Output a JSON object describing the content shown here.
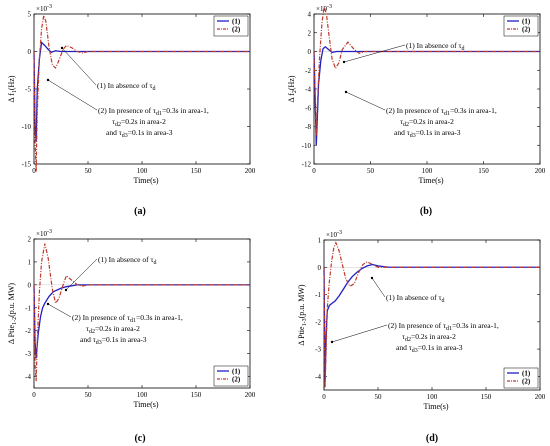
{
  "common": {
    "xlabel": "Time(s)",
    "xticks": [
      "0",
      "50",
      "100",
      "150",
      "200"
    ],
    "legend": [
      "(1)",
      "(2)"
    ],
    "exponent": "×10",
    "exponent_power": "-3",
    "series_colors": [
      "#2020c0",
      "#c0392b"
    ],
    "ann_absence": "(1) In absence of τ",
    "ann_absence_sub": "d",
    "ann_presence_1": "(2) In presence of τ",
    "ann_presence_1_sub": "d1",
    "ann_presence_1_rest": "=0.3s in area-1,",
    "ann_presence_2": "τ",
    "ann_presence_2_sub": "d2",
    "ann_presence_2_rest": "=0.2s in area-2",
    "ann_presence_3": "and τ",
    "ann_presence_3_sub": "d3",
    "ann_presence_3_rest": "=0.1s in area-3"
  },
  "panels": [
    {
      "caption": "(a)",
      "ylabel_main": "Δ f",
      "ylabel_sub": "1",
      "ylabel_tail": "(Hz)"
    },
    {
      "caption": "(b)",
      "ylabel_main": "Δ f",
      "ylabel_sub": "2",
      "ylabel_tail": "(Hz)"
    },
    {
      "caption": "(c)",
      "ylabel_main": "Δ Ptie",
      "ylabel_sub": "1-2",
      "ylabel_tail": "(p.u. MW)"
    },
    {
      "caption": "(d)",
      "ylabel_main": "Δ Ptie",
      "ylabel_sub": "1-3",
      "ylabel_tail": "(p.u. MW)"
    }
  ],
  "chart_data": [
    {
      "type": "line",
      "xlabel": "Time(s)",
      "xlim": [
        0,
        200
      ],
      "ylim": [
        -15,
        5
      ],
      "yticks": [
        -15,
        -10,
        -5,
        0,
        5
      ],
      "legend_position": "top-right",
      "series": [
        {
          "name": "(1)",
          "x": [
            0,
            1,
            2,
            3,
            5,
            7,
            10,
            13,
            16,
            20,
            25,
            30,
            40,
            50,
            200
          ],
          "y": [
            0,
            -10,
            -12,
            -5,
            -1,
            1.2,
            0.8,
            0.3,
            -0.1,
            0.1,
            0,
            0,
            0,
            0,
            0
          ]
        },
        {
          "name": "(2)",
          "x": [
            0,
            1,
            2,
            3,
            5,
            7,
            9,
            11,
            14,
            17,
            20,
            23,
            27,
            30,
            35,
            40,
            45,
            50,
            200
          ],
          "y": [
            0,
            -12,
            -16,
            -8,
            -1,
            3,
            4.8,
            4,
            0.5,
            -1.8,
            -2.2,
            -1.2,
            0.3,
            0.8,
            0.5,
            0,
            -0.2,
            0,
            0
          ]
        }
      ]
    },
    {
      "type": "line",
      "xlabel": "Time(s)",
      "xlim": [
        0,
        200
      ],
      "ylim": [
        -12,
        4
      ],
      "yticks": [
        -12,
        -10,
        -8,
        -6,
        -4,
        -2,
        0,
        2,
        4
      ],
      "legend_position": "top-right",
      "series": [
        {
          "name": "(1)",
          "x": [
            0,
            2,
            3,
            4,
            6,
            8,
            10,
            13,
            16,
            20,
            25,
            30,
            40,
            50,
            200
          ],
          "y": [
            0,
            -10,
            -7,
            -3.5,
            -1,
            0.3,
            0.5,
            0.2,
            -0.1,
            0,
            0,
            0,
            0,
            0,
            0
          ]
        },
        {
          "name": "(2)",
          "x": [
            0,
            2,
            3,
            5,
            7,
            9,
            11,
            13,
            16,
            19,
            22,
            25,
            30,
            35,
            40,
            45,
            50,
            200
          ],
          "y": [
            0,
            -9,
            -5.5,
            -0.5,
            3,
            4.8,
            4,
            2,
            -0.8,
            -1.8,
            -1.2,
            0.2,
            1,
            0.3,
            -0.2,
            0,
            0,
            0
          ]
        }
      ]
    },
    {
      "type": "line",
      "xlabel": "Time(s)",
      "xlim": [
        0,
        200
      ],
      "ylim": [
        -4.5,
        2
      ],
      "yticks": [
        -4,
        -3,
        -2,
        -1,
        0,
        1,
        2
      ],
      "legend_position": "bottom-right",
      "series": [
        {
          "name": "(1)",
          "x": [
            0,
            1,
            2,
            3,
            4,
            6,
            8,
            10,
            14,
            18,
            25,
            30,
            40,
            50,
            60,
            200
          ],
          "y": [
            0,
            -2.5,
            -3.2,
            -2.6,
            -2.1,
            -1.4,
            -1.0,
            -0.8,
            -0.5,
            -0.3,
            -0.15,
            -0.08,
            0,
            0,
            0,
            0
          ]
        },
        {
          "name": "(2)",
          "x": [
            0,
            1,
            2,
            3,
            5,
            7,
            10,
            13,
            17,
            20,
            23,
            27,
            30,
            35,
            40,
            45,
            50,
            200
          ],
          "y": [
            0,
            -3.5,
            -4.2,
            -2.5,
            -0.3,
            1.0,
            1.8,
            1.2,
            -0.2,
            -0.8,
            -0.6,
            0,
            0.4,
            0.2,
            0,
            -0.05,
            0,
            0
          ]
        }
      ]
    },
    {
      "type": "line",
      "xlabel": "Time(s)",
      "xlim": [
        0,
        200
      ],
      "ylim": [
        -4.5,
        1
      ],
      "yticks": [
        -4,
        -3,
        -2,
        -1,
        0,
        1
      ],
      "legend_position": "bottom-right",
      "series": [
        {
          "name": "(1)",
          "x": [
            0,
            1,
            2,
            3,
            5,
            8,
            10,
            14,
            18,
            22,
            26,
            30,
            35,
            40,
            45,
            50,
            60,
            200
          ],
          "y": [
            0,
            -4.2,
            -2.5,
            -1.6,
            -1.4,
            -1.3,
            -1.25,
            -1.05,
            -0.8,
            -0.55,
            -0.35,
            -0.2,
            -0.05,
            0.05,
            0.1,
            0.05,
            0,
            0
          ]
        },
        {
          "name": "(2)",
          "x": [
            0,
            1,
            2,
            3,
            5,
            7,
            9,
            11,
            14,
            17,
            20,
            24,
            28,
            32,
            36,
            40,
            45,
            50,
            60,
            200
          ],
          "y": [
            0,
            -4.4,
            -3.0,
            -1.5,
            -0.5,
            0.2,
            0.7,
            0.9,
            0.6,
            0.1,
            -0.4,
            -0.7,
            -0.6,
            -0.2,
            0.1,
            0.2,
            0.1,
            0,
            0,
            0
          ]
        }
      ]
    }
  ]
}
